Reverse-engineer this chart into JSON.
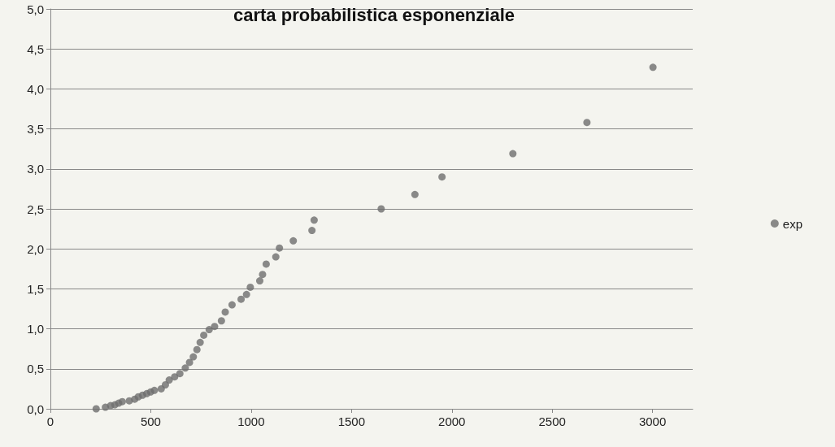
{
  "chart_data": {
    "type": "scatter",
    "title": "carta probabilistica esponenziale",
    "x": [
      228,
      274,
      300,
      321,
      340,
      358,
      393,
      420,
      438,
      459,
      480,
      499,
      518,
      552,
      573,
      592,
      619,
      645,
      672,
      693,
      712,
      730,
      746,
      764,
      791,
      818,
      852,
      871,
      905,
      950,
      977,
      996,
      1043,
      1057,
      1075,
      1123,
      1141,
      1210,
      1303,
      1314,
      1648,
      1816,
      1951,
      2304,
      2673,
      3002
    ],
    "series": [
      {
        "name": "exp",
        "color": "#6e6e6e",
        "values": [
          0,
          0.02,
          0.04,
          0.05,
          0.07,
          0.09,
          0.1,
          0.12,
          0.15,
          0.17,
          0.19,
          0.21,
          0.23,
          0.25,
          0.3,
          0.36,
          0.4,
          0.44,
          0.51,
          0.58,
          0.65,
          0.74,
          0.83,
          0.92,
          0.99,
          1.03,
          1.1,
          1.21,
          1.3,
          1.37,
          1.43,
          1.52,
          1.6,
          1.68,
          1.81,
          1.9,
          2.01,
          2.1,
          2.23,
          2.36,
          2.5,
          2.68,
          2.9,
          3.19,
          3.58,
          4.27
        ]
      }
    ],
    "xlim": [
      0,
      3200
    ],
    "xticks": [
      0,
      500,
      1000,
      1500,
      2000,
      2500,
      3000
    ],
    "ylim": [
      0,
      5
    ],
    "yticks": [
      {
        "value": 0,
        "label": "0,0"
      },
      {
        "value": 0.5,
        "label": "0,5"
      },
      {
        "value": 1,
        "label": "1,0"
      },
      {
        "value": 1.5,
        "label": "1,5"
      },
      {
        "value": 2,
        "label": "2,0"
      },
      {
        "value": 2.5,
        "label": "2,5"
      },
      {
        "value": 3,
        "label": "3,0"
      },
      {
        "value": 3.5,
        "label": "3,5"
      },
      {
        "value": 4,
        "label": "4,0"
      },
      {
        "value": 4.5,
        "label": "4,5"
      },
      {
        "value": 5,
        "label": "5,0"
      }
    ],
    "grid": "y",
    "legend": "right",
    "marker": "circle"
  }
}
